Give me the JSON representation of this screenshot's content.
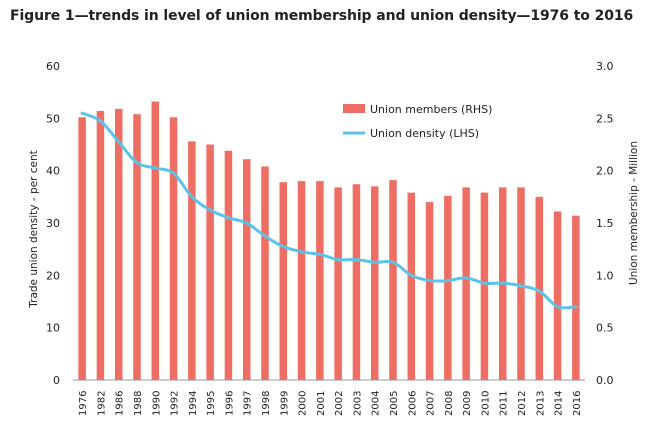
{
  "title": "Figure 1—trends in level of union membership and union density—1976 to 2016",
  "chart_data": {
    "type": "bar",
    "categories": [
      "1976",
      "1982",
      "1986",
      "1988",
      "1990",
      "1992",
      "1994",
      "1995",
      "1996",
      "1997",
      "1998",
      "1999",
      "2000",
      "2001",
      "2002",
      "2003",
      "2004",
      "2005",
      "2006",
      "2007",
      "2008",
      "2009",
      "2010",
      "2011",
      "2012",
      "2013",
      "2014",
      "2016"
    ],
    "series": [
      {
        "name": "Union members (RHS)",
        "type": "bar",
        "axis": "right",
        "color": "#ef6e64",
        "values": [
          2.51,
          2.57,
          2.59,
          2.54,
          2.66,
          2.51,
          2.28,
          2.25,
          2.19,
          2.11,
          2.04,
          1.89,
          1.9,
          1.9,
          1.84,
          1.87,
          1.85,
          1.91,
          1.79,
          1.7,
          1.76,
          1.84,
          1.79,
          1.84,
          1.84,
          1.75,
          1.61,
          1.57
        ]
      },
      {
        "name": "Union density (LHS)",
        "type": "line",
        "axis": "left",
        "color": "#5bc3e8",
        "values": [
          51.0,
          49.5,
          45.5,
          41.5,
          40.5,
          39.5,
          35.0,
          32.5,
          31.0,
          30.0,
          27.5,
          25.5,
          24.5,
          24.0,
          23.0,
          23.0,
          22.5,
          22.5,
          20.0,
          19.0,
          19.0,
          19.5,
          18.5,
          18.5,
          18.0,
          17.0,
          14.0,
          14.0
        ]
      }
    ],
    "ylabel": "Trade union density - per cent",
    "y2label": "Union membership - Million",
    "ylim": [
      0,
      60
    ],
    "y2lim": [
      0,
      3.0
    ],
    "yticks": [
      "0",
      "10",
      "20",
      "30",
      "40",
      "50",
      "60"
    ],
    "y2ticks": [
      "0.0",
      "0.5",
      "1.0",
      "1.5",
      "2.0",
      "2.5",
      "3.0"
    ],
    "grid": false,
    "legend_position": "top-right"
  }
}
